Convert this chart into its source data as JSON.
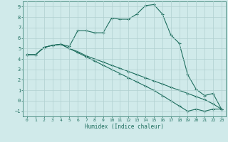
{
  "xlabel": "Humidex (Indice chaleur)",
  "background_color": "#d0eaea",
  "grid_color": "#b0d0d0",
  "line_color": "#1e6e5e",
  "xlim": [
    -0.5,
    23.5
  ],
  "ylim": [
    -1.5,
    9.5
  ],
  "xticks": [
    0,
    1,
    2,
    3,
    4,
    5,
    6,
    7,
    8,
    9,
    10,
    11,
    12,
    13,
    14,
    15,
    16,
    17,
    18,
    19,
    20,
    21,
    22,
    23
  ],
  "yticks": [
    -1,
    0,
    1,
    2,
    3,
    4,
    5,
    6,
    7,
    8,
    9
  ],
  "line1_x": [
    0,
    1,
    2,
    3,
    4,
    5,
    6,
    7,
    8,
    9,
    10,
    11,
    12,
    13,
    14,
    15,
    16,
    17,
    18,
    19,
    20,
    21,
    22,
    23
  ],
  "line1_y": [
    4.4,
    4.4,
    5.1,
    5.3,
    5.4,
    5.2,
    6.7,
    6.7,
    6.5,
    6.5,
    7.9,
    7.8,
    7.8,
    8.3,
    9.1,
    9.2,
    8.3,
    6.3,
    5.5,
    2.5,
    1.1,
    0.5,
    0.7,
    -0.8
  ],
  "line2_x": [
    0,
    1,
    2,
    3,
    4,
    5,
    6,
    7,
    8,
    9,
    10,
    11,
    12,
    13,
    14,
    15,
    16,
    17,
    18,
    19,
    20,
    21,
    22,
    23
  ],
  "line2_y": [
    4.4,
    4.4,
    5.1,
    5.3,
    5.4,
    5.0,
    4.7,
    4.3,
    4.0,
    3.7,
    3.4,
    3.1,
    2.8,
    2.5,
    2.2,
    1.9,
    1.6,
    1.3,
    1.0,
    0.7,
    0.4,
    0.1,
    -0.3,
    -0.8
  ],
  "line3_x": [
    0,
    1,
    2,
    3,
    4,
    5,
    6,
    7,
    8,
    9,
    10,
    11,
    12,
    13,
    14,
    15,
    16,
    17,
    18,
    19,
    20,
    21,
    22,
    23
  ],
  "line3_y": [
    4.4,
    4.4,
    5.1,
    5.3,
    5.4,
    5.0,
    4.6,
    4.2,
    3.8,
    3.4,
    3.0,
    2.6,
    2.2,
    1.8,
    1.4,
    1.0,
    0.5,
    0.0,
    -0.5,
    -1.0,
    -0.8,
    -1.0,
    -0.8,
    -0.8
  ]
}
